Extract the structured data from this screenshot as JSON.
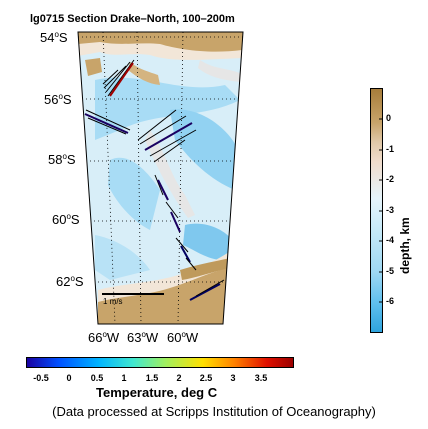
{
  "map": {
    "title": "lg0715 Section Drake–North, 100–200m",
    "lat_labels": [
      "54",
      "56",
      "58",
      "60",
      "62"
    ],
    "lat_hemi": "S",
    "lon_labels": [
      "66",
      "63",
      "60"
    ],
    "lon_hemi": "W",
    "degree_symbol": "o",
    "scale_label": "1 m/s",
    "colors": {
      "land": "#c8a46a",
      "shelf": "#f2e6d8",
      "deep": "#d8eef8",
      "abyss": "#92d2f2",
      "ridge": "#e6e6e6",
      "vector": "#000000"
    }
  },
  "temperature_bar": {
    "title": "Temperature, deg C",
    "ticks": [
      "-0.5",
      "0",
      "0.5",
      "1",
      "1.5",
      "2",
      "2.5",
      "3",
      "3.5"
    ],
    "colors": [
      "#1a00a0",
      "#0050ff",
      "#00b4ff",
      "#40e8d0",
      "#a0f060",
      "#ffe000",
      "#ff8000",
      "#e01000",
      "#9a0000"
    ]
  },
  "depth_bar": {
    "title": "depth, km",
    "ticks": [
      "0",
      "-1",
      "-2",
      "-3",
      "-4",
      "-5",
      "-6"
    ],
    "colors": [
      "#a67c3a",
      "#d8b888",
      "#f0dccc",
      "#e6f4fb",
      "#9fd8f3",
      "#5fbfee",
      "#2ea3dd"
    ]
  },
  "credit": "(Data processed at Scripps Institution of Oceanography)"
}
